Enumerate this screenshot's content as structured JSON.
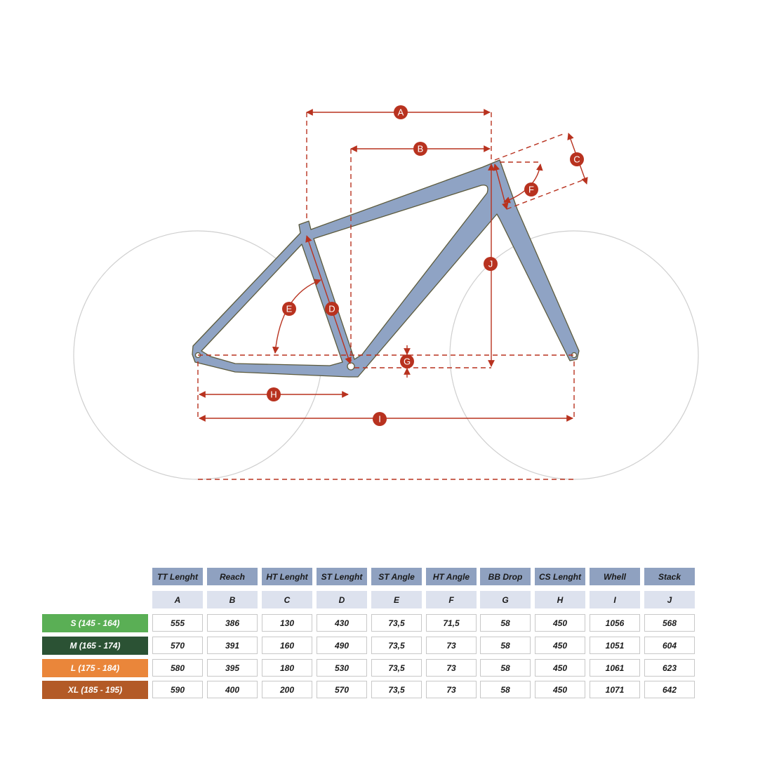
{
  "diagram": {
    "labels": {
      "A": "A",
      "B": "B",
      "C": "C",
      "D": "D",
      "E": "E",
      "F": "F",
      "G": "G",
      "H": "H",
      "I": "I",
      "J": "J"
    },
    "colors": {
      "frame": "#8fa3c4",
      "dimension": "#b8321f",
      "wheel": "#cfcfcf"
    }
  },
  "table": {
    "headers": [
      "TT Lenght",
      "Reach",
      "HT Lenght",
      "ST Lenght",
      "ST Angle",
      "HT Angle",
      "BB Drop",
      "CS Lenght",
      "Whell",
      "Stack"
    ],
    "letters": [
      "A",
      "B",
      "C",
      "D",
      "E",
      "F",
      "G",
      "H",
      "I",
      "J"
    ],
    "rows": [
      {
        "size": "S (145 - 164)",
        "color": "#5aaf55",
        "values": [
          "555",
          "386",
          "130",
          "430",
          "73,5",
          "71,5",
          "58",
          "450",
          "1056",
          "568"
        ]
      },
      {
        "size": "M (165 - 174)",
        "color": "#2b5234",
        "values": [
          "570",
          "391",
          "160",
          "490",
          "73,5",
          "73",
          "58",
          "450",
          "1051",
          "604"
        ]
      },
      {
        "size": "L (175 - 184)",
        "color": "#ea863a",
        "values": [
          "580",
          "395",
          "180",
          "530",
          "73,5",
          "73",
          "58",
          "450",
          "1061",
          "623"
        ]
      },
      {
        "size": "XL (185 - 195)",
        "color": "#b35a27",
        "values": [
          "590",
          "400",
          "200",
          "570",
          "73,5",
          "73",
          "58",
          "450",
          "1071",
          "642"
        ]
      }
    ]
  }
}
